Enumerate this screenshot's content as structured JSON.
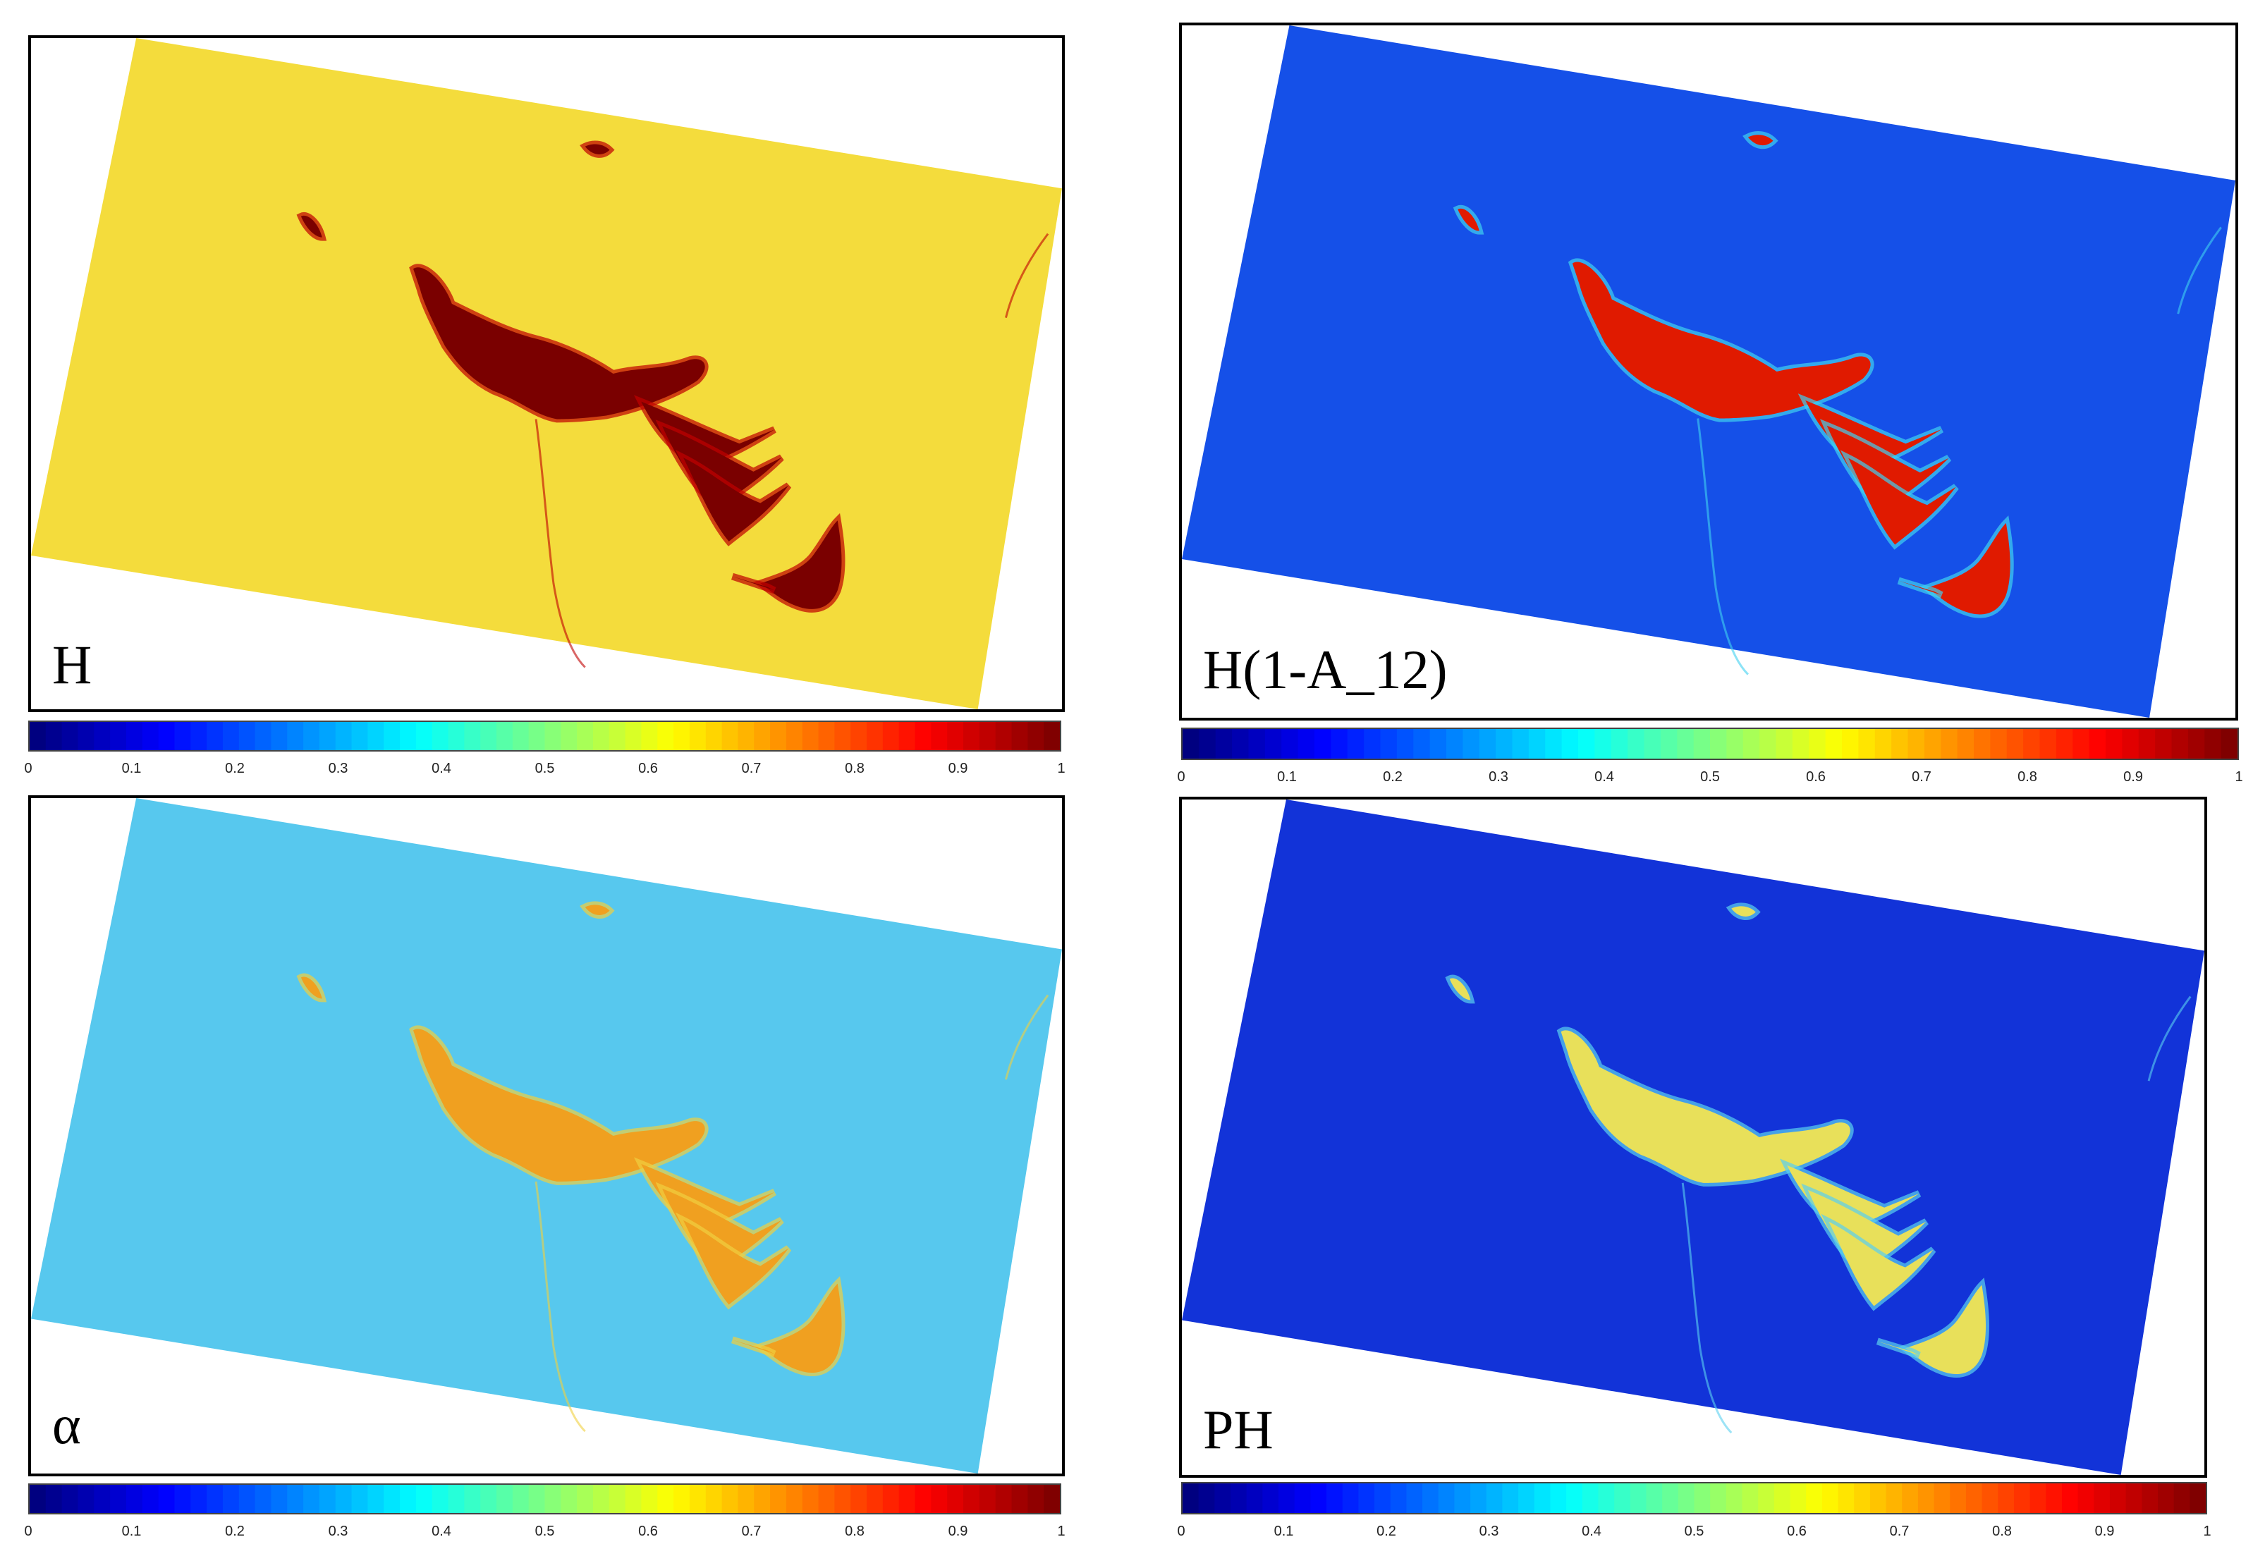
{
  "panels": [
    {
      "label": "H",
      "bg": "#f4dc3c",
      "slick": "#7a0000",
      "edge": "#c00000"
    },
    {
      "label": "H(1-A_12)",
      "bg": "#1550e8",
      "slick": "#e01a00",
      "edge": "#40d0f0"
    },
    {
      "label": "α",
      "bg": "#57c8ee",
      "slick": "#f0a020",
      "edge": "#f0d040"
    },
    {
      "label": "PH",
      "bg": "#1233d8",
      "slick": "#e8e05a",
      "edge": "#5ad0f0"
    }
  ],
  "colorbar": {
    "colormap": "jet",
    "ticks": [
      "0",
      "0.1",
      "0.2",
      "0.3",
      "0.4",
      "0.5",
      "0.6",
      "0.7",
      "0.8",
      "0.9",
      "1"
    ]
  }
}
